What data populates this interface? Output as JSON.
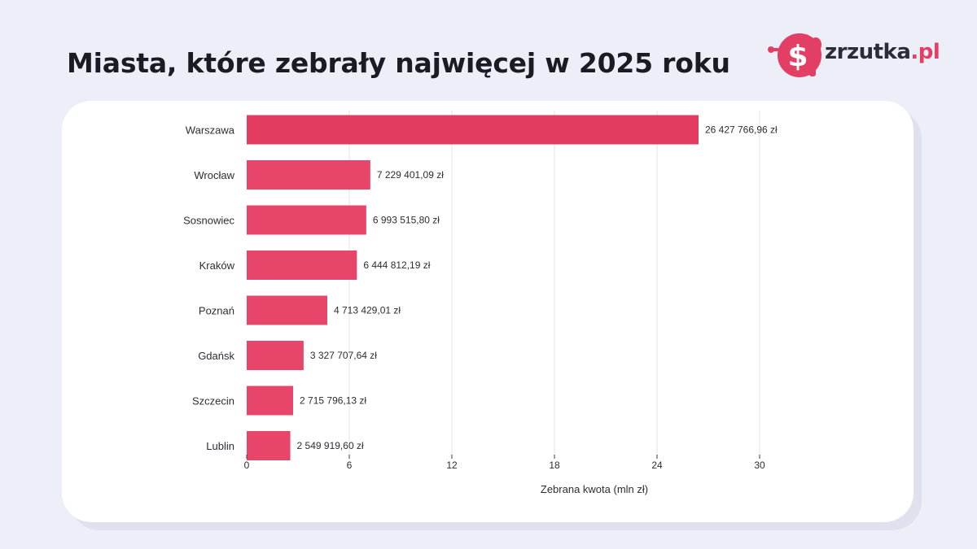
{
  "header": {
    "title": "Miasta, które zebrały najwięcej w 2025 roku"
  },
  "logo": {
    "text_main": "zrzutka",
    "text_accent": ".pl",
    "brand_color": "#e33f64"
  },
  "colors": {
    "bar": "#e8456a",
    "bar_dark": "#e23c61",
    "background": "#eceef8",
    "card": "#ffffff",
    "grid": "#e3e3e8"
  },
  "chart_data": {
    "type": "bar",
    "orientation": "horizontal",
    "categories": [
      "Warszawa",
      "Wrocław",
      "Sosnowiec",
      "Kraków",
      "Poznań",
      "Gdańsk",
      "Szczecin",
      "Lublin"
    ],
    "values": [
      26.42776696,
      7.22940109,
      6.9935158,
      6.44481219,
      4.71342901,
      3.32770764,
      2.71579613,
      2.5499196
    ],
    "value_labels": [
      "26 427 766,96 zł",
      "7 229 401,09 zł",
      "6 993 515,80 zł",
      "6 444 812,19 zł",
      "4 713 429,01 zł",
      "3 327 707,64 zł",
      "2 715 796,13 zł",
      "2 549 919,60 zł"
    ],
    "xticks": [
      0,
      6,
      12,
      18,
      24,
      30
    ],
    "xlim": [
      0,
      30
    ],
    "xlabel": "Zebrana kwota (mln zł)",
    "ylabel": "",
    "grid": "vertical",
    "legend": "none"
  }
}
